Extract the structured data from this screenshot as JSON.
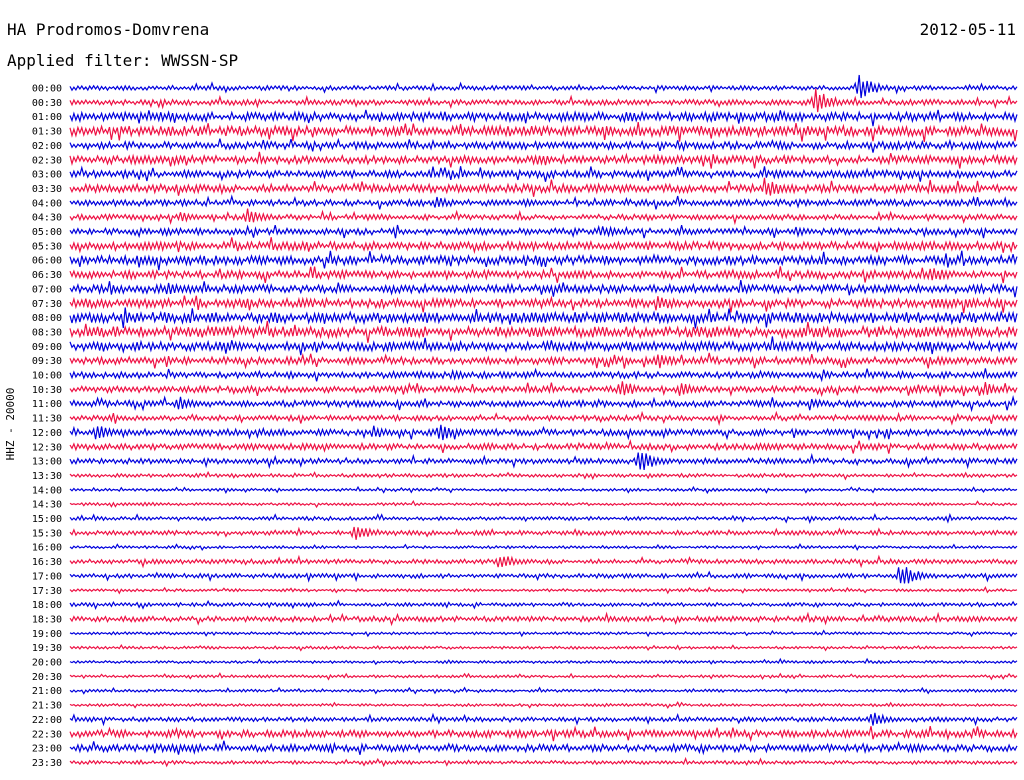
{
  "header": {
    "station": "HA Prodromos-Domvrena",
    "date": "2012-05-11",
    "filter": "Applied filter: WWSSN-SP"
  },
  "chart_data": {
    "type": "line",
    "title": "HA Prodromos-Domvrena",
    "subtitle": "Applied filter: WWSSN-SP",
    "date": "2012-05-11",
    "ylabel": "HHZ - 20000",
    "xlabel": "",
    "colors": [
      "#0000dd",
      "#ee1144"
    ],
    "grid": false,
    "minutes_per_row": 30,
    "tick_labels": [
      "00:00",
      "00:30",
      "01:00",
      "01:30",
      "02:00",
      "02:30",
      "03:00",
      "03:30",
      "04:00",
      "04:30",
      "05:00",
      "05:30",
      "06:00",
      "06:30",
      "07:00",
      "07:30",
      "08:00",
      "08:30",
      "09:00",
      "09:30",
      "10:00",
      "10:30",
      "11:00",
      "11:30",
      "12:00",
      "12:30",
      "13:00",
      "13:30",
      "14:00",
      "14:30",
      "15:00",
      "15:30",
      "16:00",
      "16:30",
      "17:00",
      "17:30",
      "18:00",
      "18:30",
      "19:00",
      "19:30",
      "20:00",
      "20:30",
      "21:00",
      "21:30",
      "22:00",
      "22:30",
      "23:00",
      "23:30"
    ],
    "noise_level": [
      0.25,
      0.3,
      0.5,
      0.55,
      0.4,
      0.45,
      0.4,
      0.45,
      0.35,
      0.3,
      0.35,
      0.45,
      0.5,
      0.45,
      0.45,
      0.5,
      0.6,
      0.6,
      0.5,
      0.4,
      0.35,
      0.35,
      0.35,
      0.3,
      0.35,
      0.35,
      0.3,
      0.2,
      0.15,
      0.15,
      0.2,
      0.25,
      0.15,
      0.25,
      0.25,
      0.15,
      0.2,
      0.3,
      0.15,
      0.15,
      0.15,
      0.15,
      0.15,
      0.15,
      0.25,
      0.4,
      0.4,
      0.2
    ],
    "events": [
      {
        "row": 0,
        "minute": 25.0,
        "amplitude": 3.0
      },
      {
        "row": 1,
        "minute": 23.6,
        "amplitude": 3.2
      },
      {
        "row": 3,
        "minute": 0.5,
        "amplitude": 0.9
      },
      {
        "row": 5,
        "minute": 3.3,
        "amplitude": 1.2
      },
      {
        "row": 5,
        "minute": 14.7,
        "amplitude": 1.5
      },
      {
        "row": 6,
        "minute": 24.7,
        "amplitude": 1.2
      },
      {
        "row": 7,
        "minute": 22.0,
        "amplitude": 2.4
      },
      {
        "row": 8,
        "minute": 11.6,
        "amplitude": 1.4
      },
      {
        "row": 8,
        "minute": 14.4,
        "amplitude": 1.1
      },
      {
        "row": 9,
        "minute": 3.5,
        "amplitude": 1.2
      },
      {
        "row": 9,
        "minute": 5.6,
        "amplitude": 2.0
      },
      {
        "row": 9,
        "minute": 9.4,
        "amplitude": 0.9
      },
      {
        "row": 10,
        "minute": 16.8,
        "amplitude": 1.6
      },
      {
        "row": 10,
        "minute": 23.0,
        "amplitude": 1.1
      },
      {
        "row": 12,
        "minute": 6.0,
        "amplitude": 0.9
      },
      {
        "row": 13,
        "minute": 27.3,
        "amplitude": 2.2
      },
      {
        "row": 14,
        "minute": 3.1,
        "amplitude": 1.7
      },
      {
        "row": 14,
        "minute": 12.6,
        "amplitude": 0.8
      },
      {
        "row": 15,
        "minute": 18.6,
        "amplitude": 2.0
      },
      {
        "row": 16,
        "minute": 22.4,
        "amplitude": 0.9
      },
      {
        "row": 17,
        "minute": 10.5,
        "amplitude": 0.9
      },
      {
        "row": 18,
        "minute": 27.3,
        "amplitude": 1.2
      },
      {
        "row": 19,
        "minute": 18.6,
        "amplitude": 2.0
      },
      {
        "row": 20,
        "minute": 10.1,
        "amplitude": 1.0
      },
      {
        "row": 20,
        "minute": 12.1,
        "amplitude": 1.1
      },
      {
        "row": 20,
        "minute": 26.3,
        "amplitude": 1.0
      },
      {
        "row": 21,
        "minute": 17.4,
        "amplitude": 2.2
      },
      {
        "row": 21,
        "minute": 19.3,
        "amplitude": 1.7
      },
      {
        "row": 21,
        "minute": 29.0,
        "amplitude": 1.8
      },
      {
        "row": 22,
        "minute": 3.4,
        "amplitude": 2.0
      },
      {
        "row": 22,
        "minute": 14.2,
        "amplitude": 0.9
      },
      {
        "row": 22,
        "minute": 23.6,
        "amplitude": 1.1
      },
      {
        "row": 24,
        "minute": 0.8,
        "amplitude": 2.2
      },
      {
        "row": 24,
        "minute": 9.6,
        "amplitude": 1.6
      },
      {
        "row": 24,
        "minute": 11.7,
        "amplitude": 2.1
      },
      {
        "row": 25,
        "minute": 22.0,
        "amplitude": 0.9
      },
      {
        "row": 26,
        "minute": 18.0,
        "amplitude": 2.8
      },
      {
        "row": 29,
        "minute": 2.3,
        "amplitude": 0.7
      },
      {
        "row": 31,
        "minute": 9.0,
        "amplitude": 2.0
      },
      {
        "row": 31,
        "minute": 6.5,
        "amplitude": 0.6
      },
      {
        "row": 33,
        "minute": 13.6,
        "amplitude": 1.9
      },
      {
        "row": 34,
        "minute": 26.3,
        "amplitude": 3.0
      },
      {
        "row": 37,
        "minute": 17.0,
        "amplitude": 0.9
      },
      {
        "row": 44,
        "minute": 25.4,
        "amplitude": 1.8
      }
    ]
  }
}
